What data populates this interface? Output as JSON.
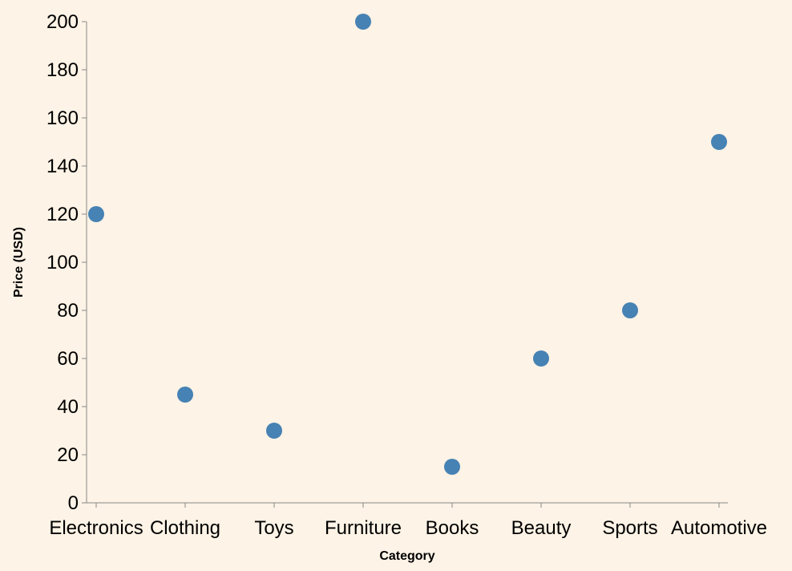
{
  "chart_data": {
    "type": "scatter",
    "title": "",
    "xlabel": "Category",
    "ylabel": "Price (USD)",
    "categories": [
      "Electronics",
      "Clothing",
      "Toys",
      "Furniture",
      "Books",
      "Beauty",
      "Sports",
      "Automotive"
    ],
    "values": [
      120,
      45,
      30,
      200,
      15,
      60,
      80,
      150
    ],
    "ylim": [
      0,
      200
    ],
    "yticks": [
      0,
      20,
      40,
      60,
      80,
      100,
      120,
      140,
      160,
      180,
      200
    ],
    "grid": false,
    "colors": {
      "background": "#fdf3e6",
      "point": "#4682b4",
      "axis": "#888888",
      "text": "#000000"
    }
  }
}
